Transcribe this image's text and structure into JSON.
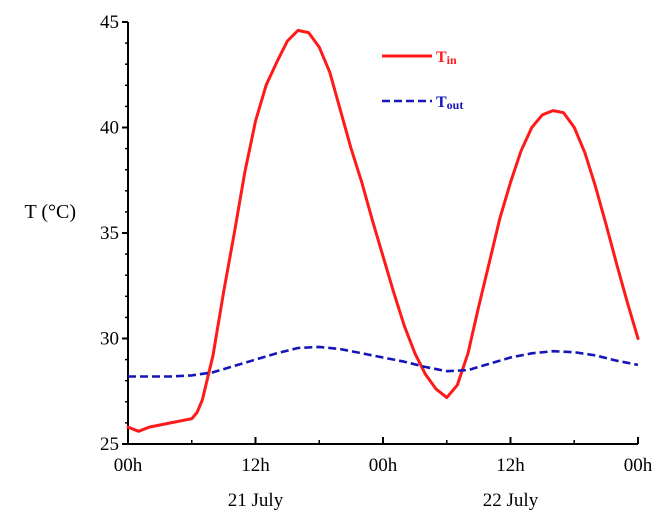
{
  "chart_data": {
    "type": "line",
    "ylabel": "T (°C)",
    "xlabel": "",
    "ylim": [
      25,
      45
    ],
    "xlim": [
      0,
      48
    ],
    "y_ticks": [
      25,
      30,
      35,
      40,
      45
    ],
    "x_ticks": [
      {
        "x": 0,
        "label": "00h"
      },
      {
        "x": 12,
        "label": "12h"
      },
      {
        "x": 24,
        "label": "00h"
      },
      {
        "x": 36,
        "label": "12h"
      },
      {
        "x": 48,
        "label": "00h"
      }
    ],
    "day_labels": [
      {
        "x": 12,
        "label": "21 July"
      },
      {
        "x": 36,
        "label": "22 July"
      }
    ],
    "grid": false,
    "legend_position": "top-right",
    "series": [
      {
        "name": "Tin",
        "name_main": "T",
        "name_sub": "in",
        "color": "#ff1a1a",
        "style": "solid",
        "x": [
          0,
          1,
          2,
          3,
          4,
          5,
          6,
          6.5,
          7,
          8,
          9,
          10,
          11,
          12,
          13,
          14,
          15,
          16,
          17,
          18,
          19,
          20,
          21,
          22,
          23,
          24,
          25,
          26,
          27,
          28,
          29,
          30,
          31,
          32,
          33,
          34,
          35,
          36,
          37,
          38,
          39,
          40,
          41,
          42,
          43,
          44,
          45,
          46,
          47,
          48
        ],
        "y": [
          25.8,
          25.6,
          25.8,
          25.9,
          26.0,
          26.1,
          26.2,
          26.5,
          27.1,
          29.2,
          32.2,
          35.0,
          37.9,
          40.3,
          42.0,
          43.1,
          44.1,
          44.6,
          44.5,
          43.8,
          42.6,
          40.8,
          39.0,
          37.4,
          35.6,
          33.9,
          32.2,
          30.6,
          29.3,
          28.3,
          27.6,
          27.2,
          27.8,
          29.3,
          31.5,
          33.6,
          35.7,
          37.4,
          38.9,
          40.0,
          40.6,
          40.8,
          40.7,
          40.0,
          38.8,
          37.2,
          35.4,
          33.5,
          31.7,
          30.0
        ]
      },
      {
        "name": "Tout",
        "name_main": "T",
        "name_sub": "out",
        "color": "#1515b8",
        "style": "dashed",
        "x": [
          0,
          2,
          4,
          6,
          8,
          10,
          12,
          14,
          16,
          18,
          20,
          22,
          24,
          26,
          28,
          30,
          32,
          34,
          36,
          38,
          40,
          42,
          44,
          46,
          48
        ],
        "y": [
          28.2,
          28.2,
          28.2,
          28.25,
          28.4,
          28.7,
          29.0,
          29.3,
          29.55,
          29.6,
          29.5,
          29.3,
          29.1,
          28.9,
          28.65,
          28.45,
          28.5,
          28.8,
          29.1,
          29.3,
          29.4,
          29.35,
          29.2,
          28.95,
          28.75
        ]
      }
    ]
  }
}
